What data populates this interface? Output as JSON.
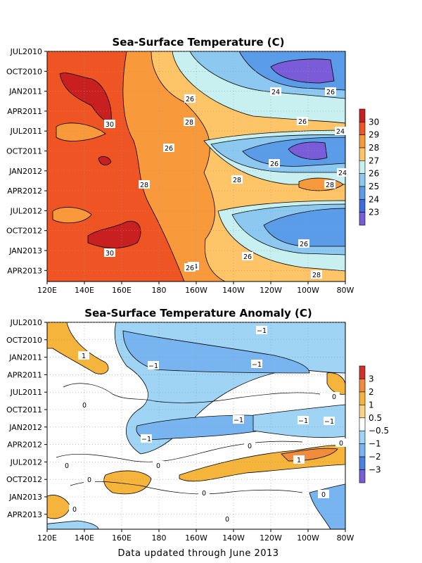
{
  "footer": "Data updated through June 2013",
  "chart_data": [
    {
      "type": "heatmap",
      "title": "Sea-Surface Temperature (C)",
      "xlabel": "",
      "ylabel": "",
      "x_ticks": [
        "120E",
        "140E",
        "160E",
        "180",
        "160W",
        "140W",
        "120W",
        "100W",
        "80W"
      ],
      "x_range": [
        "120E",
        "80W"
      ],
      "y_ticks": [
        "JUL2010",
        "OCT2010",
        "JAN2011",
        "APR2011",
        "JUL2011",
        "OCT2011",
        "JAN2012",
        "APR2012",
        "JUL2012",
        "OCT2012",
        "JAN2013",
        "APR2013"
      ],
      "y_range": [
        "JUL2010",
        "JUN2013"
      ],
      "grid": "dotted",
      "colorbar": {
        "levels": [
          "30",
          "29",
          "28",
          "27",
          "26",
          "25",
          "24",
          "23"
        ],
        "colors": [
          "#c82020",
          "#ef5424",
          "#f89a3c",
          "#fec468",
          "#c8f0f0",
          "#8cc8f0",
          "#5a9ce8",
          "#3c6ee0",
          "#7a5cd8"
        ]
      },
      "contour_labels": [
        "24",
        "26",
        "26",
        "28",
        "26",
        "24",
        "30",
        "26",
        "28",
        "24",
        "26",
        "28",
        "28",
        "24",
        "26",
        "26",
        "30",
        "28",
        "26"
      ]
    },
    {
      "type": "heatmap",
      "title": "Sea-Surface Temperature Anomaly (C)",
      "xlabel": "",
      "ylabel": "",
      "x_ticks": [
        "120E",
        "140E",
        "160E",
        "180",
        "160W",
        "140W",
        "120W",
        "100W",
        "80W"
      ],
      "x_range": [
        "120E",
        "80W"
      ],
      "y_ticks": [
        "JUL2010",
        "OCT2010",
        "JAN2011",
        "APR2011",
        "JUL2011",
        "OCT2011",
        "JAN2012",
        "APR2012",
        "JUL2012",
        "OCT2012",
        "JAN2013",
        "APR2013"
      ],
      "y_range": [
        "JUL2010",
        "JUN2013"
      ],
      "grid": "dotted",
      "colorbar": {
        "levels": [
          "3",
          "2",
          "1",
          "0.5",
          "−0.5",
          "−1",
          "−2",
          "−3"
        ],
        "colors": [
          "#d0302a",
          "#f08c3c",
          "#f5b43c",
          "#fad38a",
          "#ffffff",
          "#a0d4f5",
          "#78b4f0",
          "#4a82e4",
          "#7a5cd8"
        ]
      },
      "contour_labels": [
        "−1",
        "1",
        "−1",
        "−1",
        "0",
        "0",
        "−1",
        "−1",
        "−1",
        "1",
        "0",
        "0",
        "0",
        "−1",
        "0",
        "0",
        "0",
        "0",
        "0",
        "0"
      ]
    }
  ]
}
